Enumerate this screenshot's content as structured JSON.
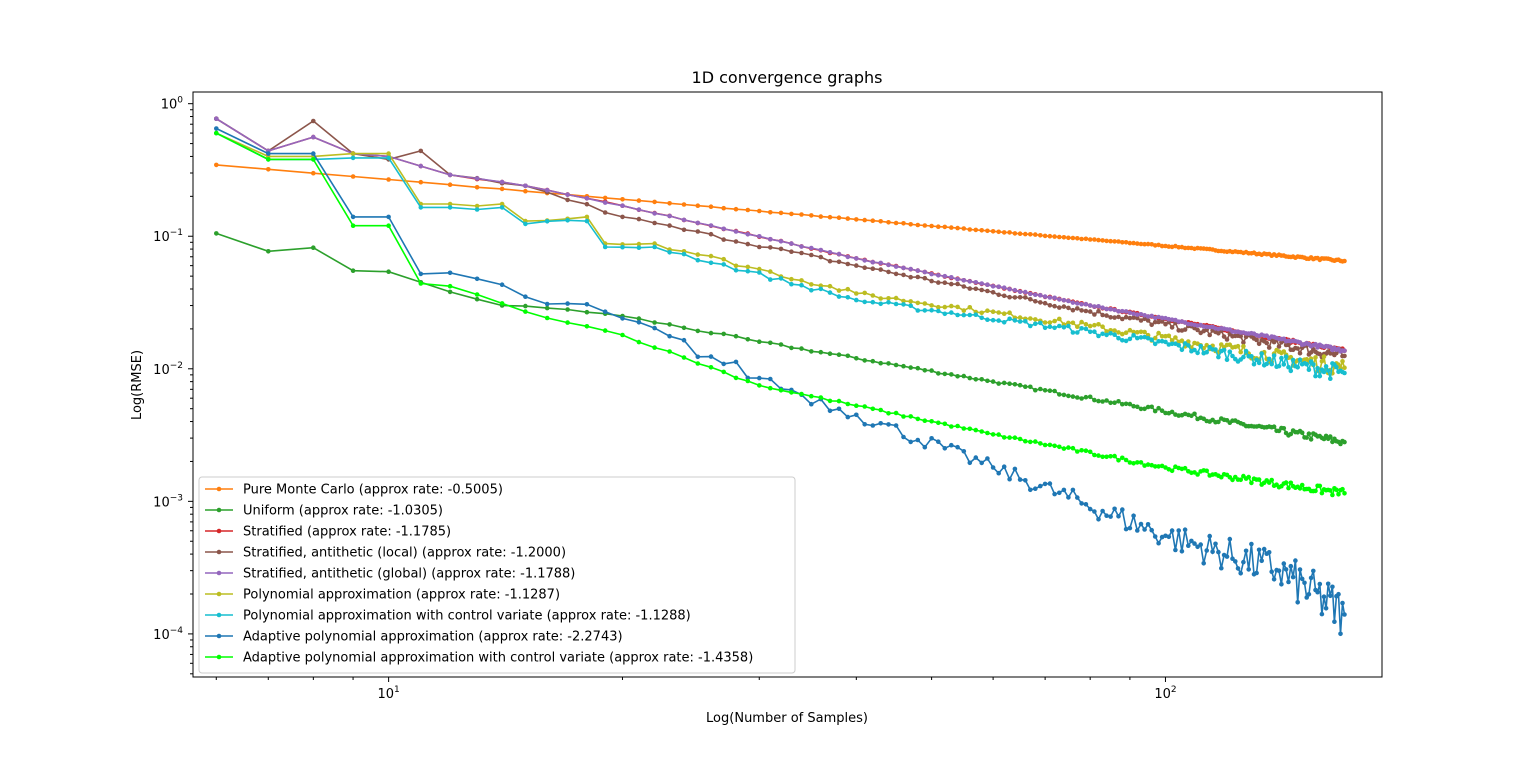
{
  "chart_data": {
    "type": "line",
    "title": "1D convergence graphs",
    "xlabel": "Log(Number of Samples)",
    "ylabel": "Log(RMSE)",
    "xscale": "log",
    "yscale": "log",
    "xlim": [
      5.6,
      190
    ],
    "ylim": [
      4.73e-05,
      1.225
    ],
    "x_ticks": [
      {
        "value": 10,
        "base": "10",
        "exp": "1"
      },
      {
        "value": 100,
        "base": "10",
        "exp": "2"
      }
    ],
    "y_ticks": [
      {
        "value": 1,
        "base": "10",
        "exp": "0"
      },
      {
        "value": 0.1,
        "base": "10",
        "exp": "−1"
      },
      {
        "value": 0.01,
        "base": "10",
        "exp": "−2"
      },
      {
        "value": 0.001,
        "base": "10",
        "exp": "−3"
      },
      {
        "value": 0.0001,
        "base": "10",
        "exp": "−4"
      }
    ],
    "grid": false,
    "legend_position": "lower-left",
    "x_range": [
      6,
      170
    ],
    "series": [
      {
        "name": "Pure Monte Carlo (approx rate: -0.5005)",
        "color": "#ff7f0e",
        "points": [
          [
            6,
            0.345
          ],
          [
            20,
            0.19
          ],
          [
            60,
            0.109
          ],
          [
            170,
            0.065
          ]
        ],
        "noise": 0.005
      },
      {
        "name": "Uniform (approx rate: -1.0305)",
        "color": "#2ca02c",
        "points": [
          [
            6,
            0.105
          ],
          [
            7,
            0.077
          ],
          [
            8,
            0.082
          ],
          [
            9,
            0.055
          ],
          [
            10,
            0.054
          ],
          [
            12,
            0.038
          ],
          [
            14,
            0.03
          ],
          [
            17,
            0.028
          ],
          [
            20,
            0.025
          ],
          [
            30,
            0.016
          ],
          [
            60,
            0.008
          ],
          [
            170,
            0.0028
          ]
        ],
        "noise": 0.02
      },
      {
        "name": "Stratified (approx rate: -1.1785)",
        "color": "#d62728",
        "points": [
          [
            6,
            0.77
          ],
          [
            7,
            0.44
          ],
          [
            8,
            0.56
          ],
          [
            9,
            0.42
          ],
          [
            10,
            0.4
          ],
          [
            12,
            0.29
          ],
          [
            15,
            0.24
          ],
          [
            20,
            0.17
          ],
          [
            40,
            0.068
          ],
          [
            80,
            0.03
          ],
          [
            170,
            0.0137
          ]
        ],
        "noise": 0.008
      },
      {
        "name": "Stratified, antithetic (local) (approx rate: -1.2000)",
        "color": "#8c564b",
        "points": [
          [
            6,
            0.77
          ],
          [
            7,
            0.44
          ],
          [
            8,
            0.74
          ],
          [
            9,
            0.42
          ],
          [
            10,
            0.38
          ],
          [
            11,
            0.44
          ],
          [
            12,
            0.29
          ],
          [
            15,
            0.24
          ],
          [
            20,
            0.14
          ],
          [
            40,
            0.06
          ],
          [
            80,
            0.027
          ],
          [
            170,
            0.0125
          ]
        ],
        "noise": 0.03
      },
      {
        "name": "Stratified, antithetic (global) (approx rate: -1.1788)",
        "color": "#9467bd",
        "points": [
          [
            6,
            0.77
          ],
          [
            7,
            0.44
          ],
          [
            8,
            0.56
          ],
          [
            9,
            0.42
          ],
          [
            10,
            0.4
          ],
          [
            12,
            0.29
          ],
          [
            15,
            0.24
          ],
          [
            20,
            0.17
          ],
          [
            40,
            0.068
          ],
          [
            80,
            0.03
          ],
          [
            170,
            0.0137
          ]
        ],
        "noise": 0.008
      },
      {
        "name": "Polynomial approximation (approx rate: -1.1287)",
        "color": "#bcbd22",
        "points": [
          [
            6,
            0.6
          ],
          [
            7,
            0.4
          ],
          [
            8,
            0.4
          ],
          [
            9,
            0.42
          ],
          [
            10,
            0.42
          ],
          [
            11,
            0.175
          ],
          [
            14,
            0.175
          ],
          [
            15,
            0.13
          ],
          [
            18,
            0.14
          ],
          [
            19,
            0.088
          ],
          [
            22,
            0.088
          ],
          [
            40,
            0.037
          ],
          [
            80,
            0.021
          ],
          [
            170,
            0.0102
          ]
        ],
        "noise": 0.04
      },
      {
        "name": "Polynomial approximation with control variate (approx rate: -1.1288)",
        "color": "#17becf",
        "points": [
          [
            6,
            0.6
          ],
          [
            7,
            0.38
          ],
          [
            8,
            0.38
          ],
          [
            9,
            0.39
          ],
          [
            10,
            0.39
          ],
          [
            11,
            0.165
          ],
          [
            14,
            0.165
          ],
          [
            15,
            0.124
          ],
          [
            18,
            0.13
          ],
          [
            19,
            0.083
          ],
          [
            22,
            0.083
          ],
          [
            40,
            0.033
          ],
          [
            80,
            0.019
          ],
          [
            170,
            0.0093
          ]
        ],
        "noise": 0.04
      },
      {
        "name": "Adaptive polynomial approximation (approx rate: -2.2743)",
        "color": "#1f77b4",
        "points": [
          [
            6,
            0.65
          ],
          [
            7,
            0.42
          ],
          [
            8,
            0.42
          ],
          [
            9,
            0.14
          ],
          [
            10,
            0.14
          ],
          [
            11,
            0.052
          ],
          [
            12,
            0.053
          ],
          [
            15,
            0.035
          ],
          [
            20,
            0.024
          ],
          [
            30,
            0.0085
          ],
          [
            40,
            0.0045
          ],
          [
            60,
            0.0018
          ],
          [
            100,
            0.00055
          ],
          [
            140,
            0.0003
          ],
          [
            170,
            0.00014
          ]
        ],
        "noise": 0.12
      },
      {
        "name": "Adaptive polynomial approximation with control variate (approx rate: -1.4358)",
        "color": "#00ff00",
        "points": [
          [
            6,
            0.6
          ],
          [
            7,
            0.38
          ],
          [
            8,
            0.38
          ],
          [
            9,
            0.12
          ],
          [
            10,
            0.12
          ],
          [
            11,
            0.044
          ],
          [
            12,
            0.042
          ],
          [
            15,
            0.027
          ],
          [
            20,
            0.018
          ],
          [
            30,
            0.0075
          ],
          [
            60,
            0.0032
          ],
          [
            100,
            0.0018
          ],
          [
            170,
            0.00115
          ]
        ],
        "noise": 0.02
      }
    ]
  }
}
